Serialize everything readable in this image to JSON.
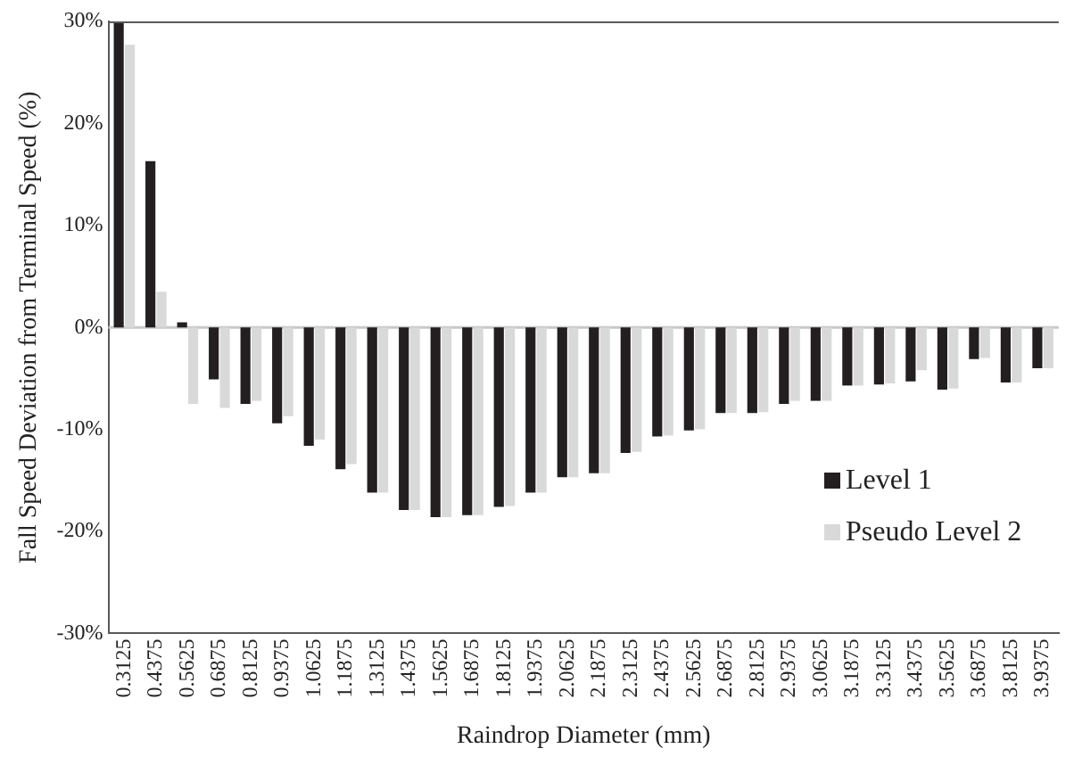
{
  "chart_data": {
    "type": "bar",
    "xlabel": "Raindrop Diameter (mm)",
    "ylabel": "Fall Speed Deviation from Terminal Speed (%)",
    "categories": [
      "0.3125",
      "0.4375",
      "0.5625",
      "0.6875",
      "0.8125",
      "0.9375",
      "1.0625",
      "1.1875",
      "1.3125",
      "1.4375",
      "1.5625",
      "1.6875",
      "1.8125",
      "1.9375",
      "2.0625",
      "2.1875",
      "2.3125",
      "2.4375",
      "2.5625",
      "2.6875",
      "2.8125",
      "2.9375",
      "3.0625",
      "3.1875",
      "3.3125",
      "3.4375",
      "3.5625",
      "3.6875",
      "3.8125",
      "3.9375"
    ],
    "series": [
      {
        "name": "Level 1",
        "color": "#231f20",
        "values": [
          30,
          16.3,
          0.5,
          -5.1,
          -7.5,
          -9.4,
          -11.6,
          -13.9,
          -16.2,
          -17.9,
          -18.6,
          -18.4,
          -17.6,
          -16.2,
          -14.7,
          -14.3,
          -12.3,
          -10.7,
          -10.1,
          -8.4,
          -8.4,
          -7.5,
          -7.2,
          -5.7,
          -5.6,
          -5.3,
          -6.1,
          -3.1,
          -5.4,
          -4.0
        ]
      },
      {
        "name": "Pseudo Level 2",
        "color": "#d9d9d9",
        "values": [
          27.7,
          3.5,
          -7.5,
          -7.9,
          -7.2,
          -8.7,
          -11.0,
          -13.4,
          -16.2,
          -17.9,
          -18.6,
          -18.4,
          -17.5,
          -16.2,
          -14.7,
          -14.3,
          -12.2,
          -10.6,
          -10.0,
          -8.4,
          -8.3,
          -7.2,
          -7.2,
          -5.7,
          -5.5,
          -4.2,
          -6.0,
          -3.0,
          -5.4,
          -4.0
        ]
      }
    ],
    "ylim": [
      -30,
      30
    ],
    "yticks": [
      {
        "value": -30,
        "label": "-30%"
      },
      {
        "value": -20,
        "label": "-20%"
      },
      {
        "value": -10,
        "label": "-10%"
      },
      {
        "value": 0,
        "label": "0%"
      },
      {
        "value": 10,
        "label": "10%"
      },
      {
        "value": 20,
        "label": "20%"
      },
      {
        "value": 30,
        "label": "30%"
      }
    ],
    "ref_lines": [
      {
        "axis": "y",
        "value": 0,
        "color": "#c8c8c8"
      }
    ],
    "grid": false,
    "legend": "bottom right"
  }
}
